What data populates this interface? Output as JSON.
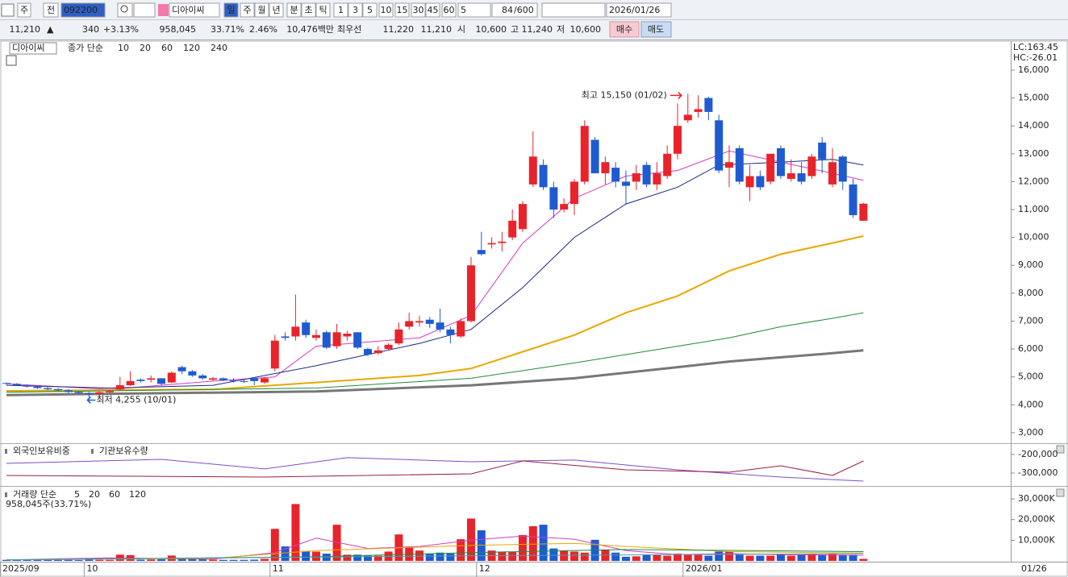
{
  "toolbar": {
    "market": "주",
    "prev": "전",
    "code": "092200",
    "name": "디아이씨",
    "periods": [
      "일",
      "주",
      "월",
      "년",
      "분",
      "초",
      "틱"
    ],
    "intervals": [
      "1",
      "3",
      "5",
      "10",
      "15",
      "30",
      "45",
      "60"
    ],
    "interval_select": "5",
    "count": "84",
    "count_max": "/600",
    "date": "2026/01/26"
  },
  "quote": {
    "price": "11,210",
    "arrow": "▲",
    "change": "340",
    "change_pct": "+3.13%",
    "volume": "958,045",
    "volume_ratio": "33.71%",
    "turnover": "2.46%",
    "amount": "10,476백만",
    "best_label": "최우선",
    "ask": "11,220",
    "bid": "11,210",
    "open_label": "시",
    "open": "10,600",
    "high_label": "고",
    "high": "11,240",
    "low_label": "저",
    "low": "10,600",
    "buy": "매수",
    "sell": "매도"
  },
  "chart_data": [
    {
      "type": "candlestick",
      "name": "디아이씨",
      "legend_prefix": "종가 단순",
      "indicators": [
        "LC:163.45",
        "HC:-26.01"
      ],
      "up_color": "#e8242a",
      "down_color": "#1e5bd1",
      "open": [
        4780,
        4750,
        4700,
        4650,
        4600,
        4560,
        4520,
        4460,
        4420,
        4380,
        4450,
        4550,
        4700,
        4900,
        4900,
        4950,
        4800,
        5350,
        5200,
        5050,
        4900,
        4950,
        4880,
        4850,
        4950,
        4800,
        5300,
        6450,
        6450,
        6950,
        6400,
        6600,
        6100,
        6450,
        6600,
        6000,
        5850,
        6000,
        6200,
        6800,
        6950,
        7050,
        6950,
        6700,
        6450,
        7000,
        9550,
        9750,
        9800,
        10000,
        10300,
        11900,
        12600,
        11800,
        11000,
        11200,
        12000,
        13500,
        12300,
        12500,
        12000,
        12000,
        12600,
        11900,
        12200,
        13000,
        14200,
        14500,
        15000,
        14200,
        12500,
        13200,
        11800,
        12200,
        12000,
        13200,
        12100,
        12300,
        12200,
        13400,
        11900,
        12900,
        11900,
        10600
      ],
      "high": [
        4800,
        4780,
        4720,
        4680,
        4640,
        4600,
        4560,
        4500,
        4460,
        4480,
        4550,
        5000,
        5200,
        4950,
        5050,
        4950,
        5200,
        5400,
        5250,
        5100,
        5000,
        4980,
        4950,
        4900,
        4980,
        5000,
        6500,
        6600,
        7950,
        7050,
        6700,
        6650,
        6900,
        6650,
        6600,
        6050,
        6100,
        6200,
        6950,
        7300,
        7200,
        7150,
        7450,
        6800,
        7100,
        9300,
        10200,
        10000,
        10200,
        11000,
        11300,
        13800,
        12800,
        12000,
        11400,
        12100,
        14200,
        13600,
        12900,
        12700,
        12400,
        12600,
        12700,
        12700,
        13300,
        14800,
        15150,
        15100,
        15050,
        14400,
        13300,
        13300,
        12600,
        12400,
        13000,
        13300,
        12800,
        12700,
        13000,
        13600,
        13200,
        12950,
        12100,
        11240
      ],
      "low": [
        4720,
        4680,
        4620,
        4570,
        4520,
        4480,
        4420,
        4380,
        4255,
        4330,
        4400,
        4500,
        4680,
        4800,
        4800,
        4700,
        4780,
        5100,
        5000,
        4900,
        4850,
        4850,
        4800,
        4780,
        4700,
        4750,
        5200,
        6300,
        6300,
        6400,
        6300,
        6000,
        6000,
        6300,
        6000,
        5750,
        5800,
        5950,
        6150,
        6700,
        6800,
        6750,
        6600,
        6200,
        6400,
        6950,
        9350,
        9600,
        9500,
        9900,
        10200,
        11800,
        11700,
        10700,
        10900,
        10800,
        11900,
        12300,
        11900,
        11800,
        11200,
        11700,
        11800,
        11700,
        12100,
        12800,
        14100,
        14300,
        14200,
        12300,
        11800,
        11900,
        11300,
        11700,
        11900,
        12100,
        12000,
        11900,
        12100,
        12300,
        11800,
        11700,
        10700,
        10600
      ],
      "close": [
        4750,
        4700,
        4650,
        4600,
        4560,
        4520,
        4460,
        4420,
        4380,
        4450,
        4500,
        4700,
        4850,
        4850,
        4950,
        4750,
        5150,
        5200,
        5050,
        4950,
        4950,
        4880,
        4850,
        4820,
        4850,
        4950,
        6300,
        6400,
        6800,
        6500,
        6500,
        6050,
        6600,
        6550,
        6050,
        5800,
        5950,
        6150,
        6700,
        7000,
        7000,
        6900,
        6700,
        6500,
        7000,
        9000,
        9400,
        9800,
        9850,
        10600,
        11200,
        12900,
        11800,
        11000,
        11200,
        12000,
        14000,
        12300,
        12700,
        12000,
        11850,
        12300,
        11900,
        12300,
        13000,
        14000,
        14400,
        14600,
        14500,
        12400,
        12700,
        12000,
        12200,
        11800,
        13000,
        12200,
        12300,
        12000,
        12900,
        12800,
        12700,
        12000,
        10800,
        11210
      ],
      "series": [
        {
          "name": "10",
          "color": "#d23cc8",
          "width": 1,
          "x": [
            0,
            10,
            20,
            26,
            30,
            40,
            45,
            50,
            55,
            60,
            65,
            70,
            75,
            80,
            83
          ],
          "values": [
            4750,
            4550,
            4850,
            5000,
            6100,
            6400,
            7200,
            9800,
            11400,
            12200,
            12400,
            13100,
            12700,
            12300,
            12050
          ]
        },
        {
          "name": "20",
          "color": "#1a2a80",
          "width": 1,
          "x": [
            0,
            10,
            20,
            30,
            40,
            45,
            50,
            55,
            60,
            65,
            69,
            75,
            80,
            83
          ],
          "values": [
            4700,
            4600,
            4700,
            5400,
            6200,
            6700,
            8200,
            10000,
            11200,
            11800,
            12600,
            12700,
            12800,
            12600
          ]
        },
        {
          "name": "60",
          "color": "#e8a800",
          "width": 2,
          "x": [
            0,
            20,
            30,
            40,
            45,
            50,
            55,
            60,
            65,
            70,
            75,
            80,
            83
          ],
          "values": [
            4500,
            4550,
            4800,
            5050,
            5300,
            5900,
            6500,
            7300,
            7900,
            8800,
            9400,
            9800,
            10050
          ]
        },
        {
          "name": "120",
          "color": "#1e8a3a",
          "width": 1,
          "x": [
            0,
            30,
            45,
            55,
            60,
            65,
            70,
            75,
            80,
            83
          ],
          "values": [
            4450,
            4600,
            4950,
            5500,
            5800,
            6100,
            6400,
            6800,
            7100,
            7300
          ]
        },
        {
          "name": "240",
          "color": "#777777",
          "width": 3,
          "x": [
            0,
            30,
            45,
            55,
            65,
            70,
            75,
            80,
            83
          ],
          "values": [
            4350,
            4480,
            4700,
            4950,
            5350,
            5550,
            5700,
            5850,
            5950
          ]
        }
      ],
      "annotations": [
        {
          "text": "최고 15,150 (01/02)",
          "index": 66,
          "value": 15150,
          "color": "#e8242a"
        },
        {
          "text": "최저 4,255 (10/01)",
          "index": 8,
          "value": 4255,
          "color": "#1e5bd1"
        }
      ],
      "xlim": [
        -0.625,
        97.19
      ],
      "xticks": [
        {
          "value": 0,
          "label": "2025/09"
        },
        {
          "value": 8,
          "label": "10"
        },
        {
          "value": 26,
          "label": "11"
        },
        {
          "value": 46,
          "label": "12"
        },
        {
          "value": 66,
          "label": "2026/01"
        }
      ],
      "last_date": "01/26",
      "ylim": [
        2650,
        17040
      ],
      "yticks": [
        {
          "value": 3000,
          "label": "3,000"
        },
        {
          "value": 4000,
          "label": "4,000"
        },
        {
          "value": 5000,
          "label": "5,000"
        },
        {
          "value": 6000,
          "label": "6,000"
        },
        {
          "value": 7000,
          "label": "7,000"
        },
        {
          "value": 8000,
          "label": "8,000"
        },
        {
          "value": 9000,
          "label": "9,000"
        },
        {
          "value": 10000,
          "label": "10,000"
        },
        {
          "value": 11000,
          "label": "11,000"
        },
        {
          "value": 12000,
          "label": "12,000"
        },
        {
          "value": 13000,
          "label": "13,000"
        },
        {
          "value": 14000,
          "label": "14,000"
        },
        {
          "value": 15000,
          "label": "15,000"
        },
        {
          "value": 16000,
          "label": "16,000"
        }
      ]
    },
    {
      "type": "line",
      "series": [
        {
          "name": "외국인보유비중",
          "color": "#7a4fc8",
          "x": [
            0,
            15,
            25,
            33,
            45,
            55,
            65,
            75,
            83
          ],
          "values": [
            -247800,
            -226000,
            -278000,
            -217000,
            -239000,
            -230000,
            -282600,
            -321700,
            -343500
          ]
        },
        {
          "name": "기관보유수량",
          "color": "#9a1e3a",
          "x": [
            0,
            25,
            45,
            50,
            60,
            70,
            75,
            80,
            83
          ],
          "values": [
            -313000,
            -321700,
            -304300,
            -234800,
            -282600,
            -295600,
            -260900,
            -313000,
            -234800
          ]
        }
      ],
      "ylim": [
        -365200,
        -147800
      ],
      "yticks": [
        {
          "value": -200000,
          "label": "-200,000"
        },
        {
          "value": -300000,
          "label": "-300,000"
        }
      ]
    },
    {
      "type": "bar",
      "legend_prefix": "거래량 단순",
      "subtitle": "958,045주(33.71%)",
      "values": [
        500,
        450,
        400,
        450,
        400,
        450,
        500,
        400,
        600,
        500,
        500,
        3000,
        2800,
        600,
        700,
        800,
        2600,
        1500,
        1000,
        800,
        600,
        500,
        500,
        500,
        600,
        1000,
        15500,
        7000,
        27500,
        4800,
        4500,
        3500,
        17500,
        3000,
        3000,
        2500,
        2500,
        4500,
        12800,
        6500,
        5000,
        3500,
        4000,
        3500,
        10500,
        20500,
        14800,
        5000,
        4500,
        4500,
        12500,
        16800,
        17500,
        6000,
        5000,
        4500,
        4000,
        10200,
        5500,
        4000,
        2000,
        2200,
        3000,
        3000,
        2500,
        3500,
        3000,
        3000,
        2500,
        4500,
        4500,
        3000,
        2500,
        2500,
        2500,
        3500,
        2500,
        3000,
        3500,
        3000,
        3500,
        3000,
        3000,
        958
      ],
      "series": [
        {
          "name": "5",
          "color": "#d23cc8",
          "x": [
            0,
            10,
            20,
            26,
            30,
            35,
            40,
            45,
            50,
            55,
            60,
            65,
            70,
            75,
            83
          ],
          "values": [
            500,
            1500,
            800,
            4000,
            11000,
            6000,
            7000,
            10000,
            12000,
            10500,
            5000,
            3000,
            3500,
            3000,
            2700
          ]
        },
        {
          "name": "20",
          "color": "#e8a800",
          "x": [
            0,
            20,
            30,
            45,
            55,
            60,
            70,
            83
          ],
          "values": [
            500,
            1200,
            5000,
            7500,
            8500,
            7000,
            4500,
            3800
          ]
        },
        {
          "name": "60",
          "color": "#1e8a3a",
          "x": [
            0,
            30,
            45,
            60,
            83
          ],
          "values": [
            500,
            2000,
            4000,
            5500,
            4500
          ]
        },
        {
          "name": "120",
          "color": "#4aa0b0",
          "x": [
            0,
            45,
            83
          ],
          "values": [
            500,
            2500,
            3500
          ]
        }
      ],
      "ylim": [
        0,
        35490
      ],
      "yticks": [
        {
          "value": 10000,
          "label": "10,000K"
        },
        {
          "value": 20000,
          "label": "20,000K"
        },
        {
          "value": 30000,
          "label": "30,000K"
        }
      ]
    }
  ]
}
